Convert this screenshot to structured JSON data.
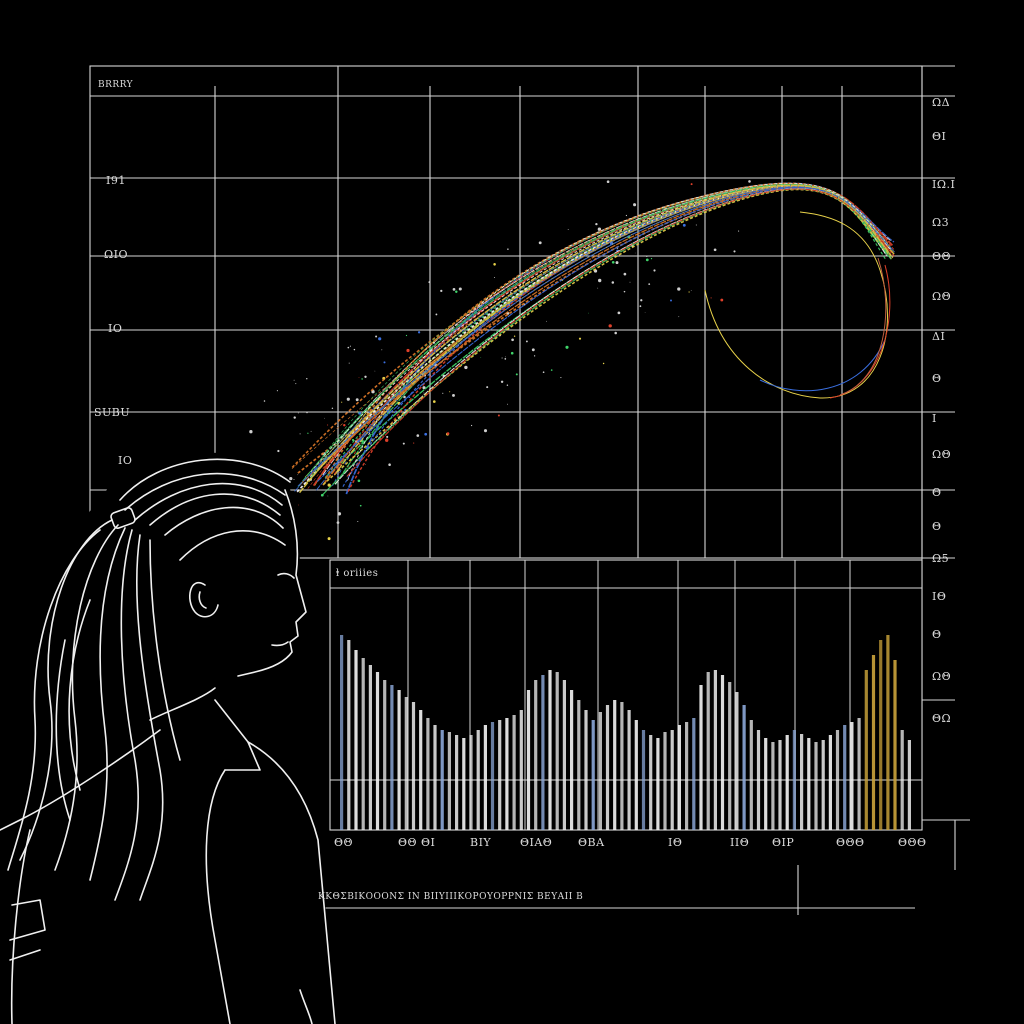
{
  "colors": {
    "background": "#000000",
    "grid_line": "#d9d9d9",
    "trail_red": "#e0402a",
    "trail_green": "#3fd46a",
    "trail_yellow": "#e8d24a",
    "trail_blue": "#3a6fe0",
    "bar_white": "#f2f2f2",
    "bar_gold": "#c9a23a"
  },
  "board": {
    "corner_label": "BRRRY",
    "left_labels": [
      "Ι91",
      "ΩΙΟ",
      "ΙΟ",
      "SUΒU",
      "ΙΟ"
    ],
    "right_labels": [
      "ΩΔ",
      "ΘΙ",
      "ΙΩ.Ι",
      "Ω3",
      "ΘΘ",
      "ΩΘ",
      "ΔΙ",
      "Θ",
      "Ι",
      "ΩΘ",
      "Θ",
      "Θ",
      "Ω5",
      "ΙΘ",
      "Θ",
      "ΩΘ",
      "ΘΩ"
    ]
  },
  "inset_chart": {
    "title": "ⱡ oriiies",
    "bottom_labels": [
      "ΘΘ",
      "ΘΘ ΘΙ",
      "ΒΙΥ",
      "ΘΙΑΘ",
      "ΘΒΑ",
      "ΙΘ",
      "ΙΙΘ",
      "ΘΙΡ",
      "ΘΘΘ",
      "ΘΘΘ"
    ]
  },
  "caption": {
    "text": "ΚΚΘΣΒΙΚΟΟΟΝΣ ΙΝ ΒΙΙΥΙΙΙΚΟΡΟΥΟΡΡΝΙΣ ΒΕΥΑΙΙ Β"
  },
  "subject": {
    "description_icon": "girl-ponytail-line-art"
  }
}
